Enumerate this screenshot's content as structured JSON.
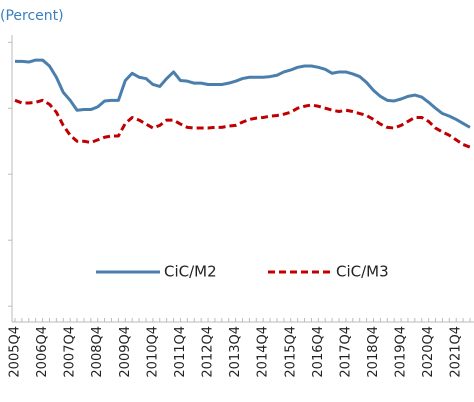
{
  "chart_data": {
    "type": "line",
    "subtitle": "(Percent)",
    "categories": [
      "2005Q4",
      null,
      null,
      null,
      "2006Q4",
      null,
      null,
      null,
      "2007Q4",
      null,
      null,
      null,
      "2008Q4",
      null,
      null,
      null,
      "2009Q4",
      null,
      null,
      null,
      "2010Q4",
      null,
      null,
      null,
      "2011Q4",
      null,
      null,
      null,
      "2012Q4",
      null,
      null,
      null,
      "2013Q4",
      null,
      null,
      null,
      "2014Q4",
      null,
      null,
      null,
      "2015Q4",
      null,
      null,
      null,
      "2016Q4",
      null,
      null,
      null,
      "2017Q4",
      null,
      null,
      null,
      "2018Q4",
      null,
      null,
      null,
      "2019Q4",
      null,
      null,
      null,
      "2020Q4",
      null,
      null,
      null,
      "2021Q4",
      null,
      null
    ],
    "series": [
      {
        "name": "CiC/M2",
        "color": "#4a7fad",
        "dash": false,
        "values": [
          4.71,
          4.71,
          4.7,
          4.73,
          4.73,
          4.64,
          4.47,
          4.24,
          4.12,
          3.97,
          3.98,
          3.98,
          4.02,
          4.11,
          4.12,
          4.12,
          4.42,
          4.53,
          4.47,
          4.45,
          4.36,
          4.33,
          4.45,
          4.55,
          4.42,
          4.41,
          4.38,
          4.38,
          4.36,
          4.36,
          4.36,
          4.38,
          4.41,
          4.45,
          4.47,
          4.47,
          4.47,
          4.48,
          4.5,
          4.55,
          4.58,
          4.62,
          4.64,
          4.64,
          4.62,
          4.59,
          4.53,
          4.55,
          4.55,
          4.52,
          4.48,
          4.39,
          4.27,
          4.18,
          4.12,
          4.11,
          4.14,
          4.18,
          4.2,
          4.17,
          4.09,
          4.0,
          3.92,
          3.88,
          3.83,
          3.77,
          3.71
        ]
      },
      {
        "name": "CiC/M3",
        "color": "#c00000",
        "dash": true,
        "values": [
          4.12,
          4.08,
          4.08,
          4.09,
          4.12,
          4.06,
          3.94,
          3.74,
          3.59,
          3.5,
          3.5,
          3.48,
          3.52,
          3.56,
          3.58,
          3.58,
          3.77,
          3.86,
          3.82,
          3.76,
          3.7,
          3.74,
          3.82,
          3.82,
          3.76,
          3.71,
          3.7,
          3.7,
          3.7,
          3.71,
          3.71,
          3.73,
          3.74,
          3.79,
          3.83,
          3.85,
          3.86,
          3.88,
          3.89,
          3.91,
          3.94,
          4.0,
          4.03,
          4.05,
          4.03,
          4.0,
          3.97,
          3.95,
          3.97,
          3.95,
          3.92,
          3.89,
          3.83,
          3.76,
          3.71,
          3.7,
          3.74,
          3.8,
          3.86,
          3.86,
          3.8,
          3.7,
          3.64,
          3.59,
          3.52,
          3.45,
          3.41
        ]
      }
    ],
    "ylim": [
      0.76,
      5.11
    ],
    "yticks": [
      1,
      2,
      3,
      4,
      5
    ],
    "grid": false,
    "legend": "lower center"
  }
}
